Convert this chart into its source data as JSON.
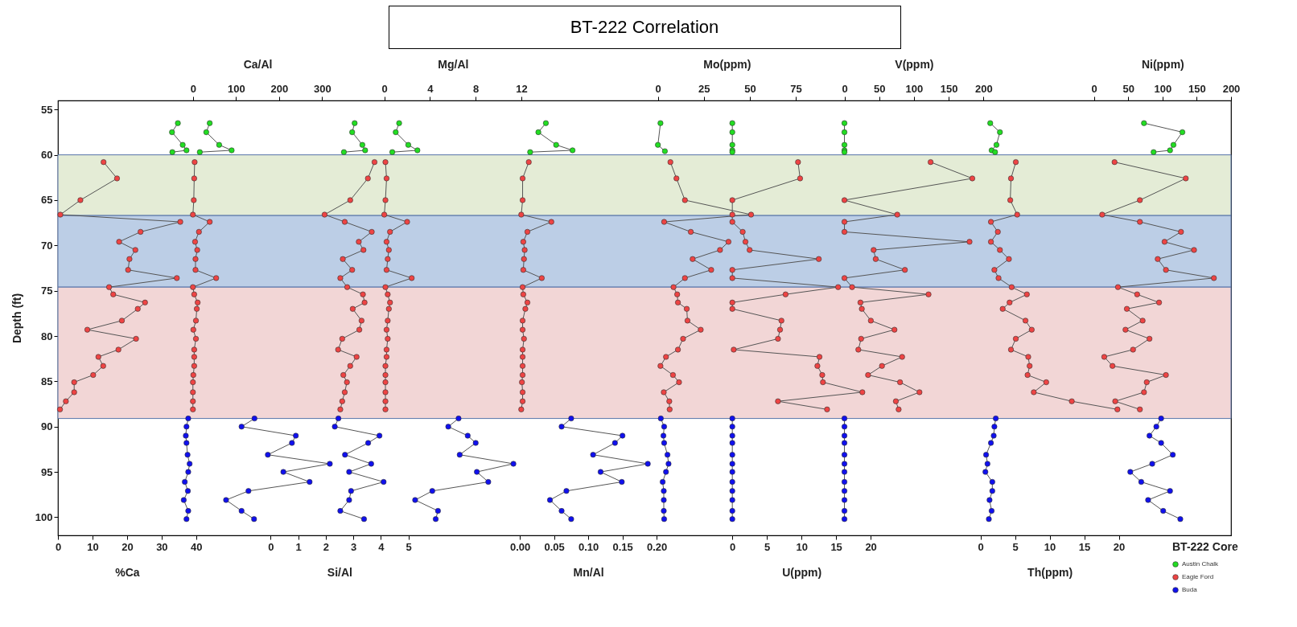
{
  "chart_data": [
    {
      "type": "line",
      "title": "BT-222 Correlation",
      "ylabel": "Depth (ft)",
      "marker": "circle",
      "xlabel": "%Ca",
      "xlim": [
        0,
        339.4
      ],
      "xticks": [
        0,
        10,
        20,
        30,
        40
      ],
      "x2label": "Ca/Al",
      "x2lim": [
        -313.5,
        2411
      ],
      "x2ticks": [
        0,
        100,
        200,
        300
      ],
      "ylim": [
        102,
        54
      ],
      "yticks": [
        55,
        60,
        65,
        70,
        75,
        80,
        85,
        90,
        95,
        100
      ],
      "bands": [
        {
          "axis": "y",
          "from": 60,
          "to": 66.7,
          "color": "#e4ecd6"
        },
        {
          "axis": "y",
          "from": 66.7,
          "to": 74.6,
          "color": "#bccee6"
        },
        {
          "axis": "y",
          "from": 74.6,
          "to": 89.1,
          "color": "#f2d6d6"
        }
      ],
      "series": [
        {
          "color": "#22dd22",
          "x": [
            34.7,
            33.0,
            36.1,
            37.2,
            33.1
          ],
          "values": [
            56.5,
            57.5,
            58.9,
            59.5,
            59.7
          ]
        },
        {
          "color": "#ee4444",
          "x": [
            13.2,
            17.1,
            6.5,
            0.7,
            35.4,
            23.9,
            17.7,
            22.4,
            20.7,
            20.3,
            34.4,
            14.8,
            16.0,
            25.2,
            23.1,
            18.5,
            8.5,
            22.6,
            17.5,
            11.7,
            13.1,
            10.2,
            4.7,
            4.7,
            2.3,
            0.6
          ],
          "values": [
            60.8,
            62.6,
            65.0,
            66.6,
            67.4,
            68.5,
            69.6,
            70.5,
            71.5,
            72.7,
            73.6,
            74.6,
            75.4,
            76.3,
            77.0,
            78.3,
            79.3,
            80.3,
            81.5,
            82.3,
            83.3,
            84.3,
            85.1,
            86.2,
            87.2,
            88.1
          ]
        },
        {
          "color": "#1010ee",
          "x": [
            37.7,
            37.2,
            37.0,
            37.2,
            37.5,
            38.1,
            37.7,
            36.7,
            37.6,
            36.4,
            37.7,
            37.2
          ],
          "values": [
            89.1,
            90.0,
            91.0,
            91.8,
            93.1,
            94.1,
            95.0,
            96.1,
            97.1,
            98.1,
            99.3,
            100.2
          ]
        },
        {
          "color": "#22dd22",
          "axis": "x2",
          "x": [
            39,
            31,
            61,
            90,
            16
          ],
          "values": [
            56.5,
            57.5,
            58.9,
            59.5,
            59.7
          ]
        },
        {
          "color": "#ee4444",
          "axis": "x2",
          "x": [
            4,
            3,
            2,
            0,
            39,
            14,
            5,
            10,
            6,
            6,
            54,
            0,
            3,
            11,
            9,
            7,
            1,
            7,
            3,
            3,
            3,
            1,
            0,
            0,
            0,
            0
          ],
          "values": [
            60.8,
            62.6,
            65.0,
            66.6,
            67.4,
            68.5,
            69.6,
            70.5,
            71.5,
            72.7,
            73.6,
            74.6,
            75.4,
            76.3,
            77.0,
            78.3,
            79.3,
            80.3,
            81.5,
            82.3,
            83.3,
            84.3,
            85.1,
            86.2,
            87.2,
            88.1
          ]
        },
        {
          "color": "#1010ee",
          "axis": "x2",
          "x": [
            143,
            113,
            239,
            230,
            174,
            318,
            210,
            271,
            129,
            77,
            113,
            142
          ],
          "values": [
            89.1,
            90.0,
            91.0,
            91.8,
            93.1,
            94.1,
            95.0,
            96.1,
            97.1,
            98.1,
            99.3,
            100.2
          ]
        }
      ]
    },
    {
      "type": "line",
      "marker": "circle",
      "xlabel": "Si/Al",
      "xlim": [
        -7.71,
        34.83
      ],
      "xticks": [
        0,
        1,
        2,
        3,
        4,
        5
      ],
      "x2label": "Mg/Al",
      "x2lim": [
        -28.56,
        74.1
      ],
      "x2ticks": [
        0,
        4,
        8,
        12
      ],
      "ylim": [
        102,
        54
      ],
      "tick_labels": "x",
      "series": [
        {
          "color": "#22dd22",
          "x": [
            3.05,
            2.96,
            3.33,
            3.43,
            2.66
          ],
          "values": [
            56.5,
            57.5,
            58.9,
            59.5,
            59.7
          ]
        },
        {
          "color": "#ee4444",
          "x": [
            3.77,
            3.53,
            2.89,
            1.96,
            2.69,
            3.67,
            3.2,
            3.37,
            2.62,
            2.96,
            2.53,
            2.78,
            3.35,
            3.41,
            2.98,
            3.3,
            3.22,
            2.6,
            2.45,
            3.12,
            2.89,
            2.64,
            2.77,
            2.69,
            2.6,
            2.53
          ],
          "values": [
            60.8,
            62.6,
            65.0,
            66.6,
            67.4,
            68.5,
            69.6,
            70.5,
            71.5,
            72.7,
            73.6,
            74.6,
            75.4,
            76.3,
            77.0,
            78.3,
            79.3,
            80.3,
            81.5,
            82.3,
            83.3,
            84.3,
            85.1,
            86.2,
            87.2,
            88.1
          ]
        },
        {
          "color": "#1010ee",
          "x": [
            2.46,
            2.33,
            3.95,
            3.54,
            2.7,
            3.65,
            2.85,
            4.1,
            2.92,
            2.85,
            2.53,
            3.39
          ],
          "values": [
            89.1,
            90.0,
            91.0,
            91.8,
            93.1,
            94.1,
            95.0,
            96.1,
            97.1,
            98.1,
            99.3,
            100.2
          ]
        },
        {
          "color": "#22dd22",
          "axis": "x2",
          "x": [
            1.3,
            1.0,
            2.1,
            2.9,
            0.7
          ],
          "values": [
            56.5,
            57.5,
            58.9,
            59.5,
            59.7
          ]
        },
        {
          "color": "#ee4444",
          "axis": "x2",
          "x": [
            0.1,
            0.2,
            0.1,
            0,
            2.0,
            0.5,
            0.2,
            0.4,
            0.3,
            0.2,
            2.4,
            0.1,
            0.3,
            0.5,
            0.4,
            0.3,
            0.2,
            0.3,
            0.2,
            0.2,
            0.1,
            0.1,
            0.1,
            0.1,
            0.1,
            0.1
          ],
          "values": [
            60.8,
            62.6,
            65.0,
            66.6,
            67.4,
            68.5,
            69.6,
            70.5,
            71.5,
            72.7,
            73.6,
            74.6,
            75.4,
            76.3,
            77.0,
            78.3,
            79.3,
            80.3,
            81.5,
            82.3,
            83.3,
            84.3,
            85.1,
            86.2,
            87.2,
            88.1
          ]
        },
        {
          "color": "#1010ee",
          "axis": "x2",
          "x": [
            6.5,
            5.6,
            7.3,
            8.0,
            6.6,
            11.3,
            8.1,
            9.1,
            4.2,
            2.7,
            4.7,
            4.5
          ],
          "values": [
            89.1,
            90.0,
            91.0,
            91.8,
            93.1,
            94.1,
            95.0,
            96.1,
            97.1,
            98.1,
            99.3,
            100.2
          ]
        }
      ]
    },
    {
      "type": "line",
      "marker": "circle",
      "xlabel": "Mn/Al",
      "xlim": [
        -0.6753,
        1.0396
      ],
      "xticks": [
        {
          "value": 0,
          "label": "0.00"
        },
        {
          "value": 0.05,
          "label": "0.05"
        },
        {
          "value": 0.1,
          "label": "0.10"
        },
        {
          "value": 0.15,
          "label": "0.15"
        },
        {
          "value": 0.2,
          "label": "0.20"
        }
      ],
      "x2label": "Mo(ppm)",
      "x2lim": [
        -326.4,
        311.8
      ],
      "x2ticks": [
        0,
        25,
        50,
        75
      ],
      "ylim": [
        102,
        54
      ],
      "tick_labels": "x",
      "series": [
        {
          "color": "#22dd22",
          "x": [
            0.038,
            0.027,
            0.053,
            0.077,
            0.015
          ],
          "values": [
            56.5,
            57.5,
            58.9,
            59.5,
            59.7
          ]
        },
        {
          "color": "#ee4444",
          "x": [
            0.013,
            0.004,
            0.004,
            0.002,
            0.046,
            0.011,
            0.005,
            0.007,
            0.006,
            0.005,
            0.032,
            0.004,
            0.005,
            0.011,
            0.008,
            0.004,
            0.004,
            0.006,
            0.004,
            0.004,
            0.004,
            0.004,
            0.003,
            0.004,
            0.004,
            0.002
          ],
          "values": [
            60.8,
            62.6,
            65.0,
            66.6,
            67.4,
            68.5,
            69.6,
            70.5,
            71.5,
            72.7,
            73.6,
            74.6,
            75.4,
            76.3,
            77.0,
            78.3,
            79.3,
            80.3,
            81.5,
            82.3,
            83.3,
            84.3,
            85.1,
            86.2,
            87.2,
            88.1
          ]
        },
        {
          "color": "#1010ee",
          "x": [
            0.075,
            0.061,
            0.15,
            0.139,
            0.107,
            0.187,
            0.118,
            0.149,
            0.068,
            0.044,
            0.061,
            0.075
          ],
          "values": [
            89.1,
            90.0,
            91.0,
            91.8,
            93.1,
            94.1,
            95.0,
            96.1,
            97.1,
            98.1,
            99.3,
            100.2
          ]
        },
        {
          "color": "#22dd22",
          "axis": "x2",
          "x": [
            1.4,
            0,
            3.8
          ],
          "values": [
            56.5,
            58.9,
            59.6
          ]
        },
        {
          "color": "#ee4444",
          "axis": "x2",
          "x": [
            6.8,
            10.1,
            14.7,
            50.7,
            3.4,
            17.9,
            38.4,
            33.8,
            18.9,
            29.0,
            14.7,
            8.5,
            10.5,
            10.9,
            15.7,
            16.1,
            23.3,
            13.7,
            10.9,
            4.4,
            1.4,
            8.2,
            11.5,
            3.2,
            6.2,
            6.4
          ],
          "values": [
            60.8,
            62.6,
            65.0,
            66.6,
            67.4,
            68.5,
            69.6,
            70.5,
            71.5,
            72.7,
            73.6,
            74.6,
            75.4,
            76.3,
            77.0,
            78.3,
            79.3,
            80.3,
            81.5,
            82.3,
            83.3,
            84.3,
            85.1,
            86.2,
            87.2,
            88.1
          ]
        },
        {
          "color": "#1010ee",
          "axis": "x2",
          "x": [
            1.6,
            3.4,
            3.0,
            3.4,
            5.2,
            5.8,
            4.4,
            2.6,
            3.2,
            3.2,
            3.2,
            3.4
          ],
          "values": [
            89.1,
            90.0,
            91.0,
            91.8,
            93.1,
            94.1,
            95.0,
            96.1,
            97.1,
            98.1,
            99.3,
            100.2
          ]
        }
      ]
    },
    {
      "type": "line",
      "marker": "circle",
      "xlabel": "U(ppm)",
      "xlim": [
        -97.5,
        72.1
      ],
      "xticks": [
        0,
        5,
        10,
        15,
        20
      ],
      "x2label": "V(ppm)",
      "x2lim": [
        -1131.8,
        556.3
      ],
      "x2ticks": [
        0,
        50,
        100,
        150,
        200
      ],
      "ylim": [
        102,
        54
      ],
      "tick_labels": "x",
      "series": [
        {
          "color": "#22dd22",
          "x": [
            0,
            0,
            0,
            0,
            0
          ],
          "values": [
            56.5,
            57.5,
            58.9,
            59.5,
            59.7
          ]
        },
        {
          "color": "#ee4444",
          "x": [
            9.5,
            9.8,
            0,
            0,
            0,
            1.5,
            1.9,
            2.5,
            12.5,
            0,
            0,
            15.3,
            7.7,
            0,
            0,
            7.1,
            6.9,
            6.6,
            0.2,
            12.6,
            12.3,
            13.0,
            13.1,
            18.8,
            6.6,
            13.7
          ],
          "values": [
            60.8,
            62.6,
            65.0,
            66.6,
            67.4,
            68.5,
            69.6,
            70.5,
            71.5,
            72.7,
            73.6,
            74.6,
            75.4,
            76.3,
            77.0,
            78.3,
            79.3,
            80.3,
            81.5,
            82.3,
            83.3,
            84.3,
            85.1,
            86.2,
            87.2,
            88.1
          ]
        },
        {
          "color": "#1010ee",
          "x": [
            0,
            0,
            0,
            0,
            0,
            0,
            0,
            0,
            0,
            0,
            0,
            0
          ],
          "values": [
            89.1,
            90.0,
            91.0,
            91.8,
            93.1,
            94.1,
            95.0,
            96.1,
            97.1,
            98.1,
            99.3,
            100.2
          ]
        },
        {
          "color": "#22dd22",
          "axis": "x2",
          "x": [
            0,
            0,
            0,
            0,
            0
          ],
          "values": [
            56.5,
            57.5,
            58.9,
            59.5,
            59.7
          ]
        },
        {
          "color": "#ee4444",
          "axis": "x2",
          "x": [
            124,
            184,
            0,
            76,
            0,
            0,
            180,
            42,
            45,
            87,
            0,
            11,
            121,
            23,
            25,
            38,
            72,
            24,
            20,
            83,
            54,
            34,
            80,
            108,
            74,
            78
          ],
          "values": [
            60.8,
            62.6,
            65.0,
            66.6,
            67.4,
            68.5,
            69.6,
            70.5,
            71.5,
            72.7,
            73.6,
            74.6,
            75.4,
            76.3,
            77.0,
            78.3,
            79.3,
            80.3,
            81.5,
            82.3,
            83.3,
            84.3,
            85.1,
            86.2,
            87.2,
            88.1
          ]
        },
        {
          "color": "#1010ee",
          "axis": "x2",
          "x": [
            0,
            0,
            0,
            0,
            0,
            0,
            0,
            0,
            0,
            0,
            0,
            0
          ],
          "values": [
            89.1,
            90.0,
            91.0,
            91.8,
            93.1,
            94.1,
            95.0,
            96.1,
            97.1,
            98.1,
            99.3,
            100.2
          ]
        }
      ]
    },
    {
      "type": "line",
      "marker": "circle",
      "legend": "bottom right",
      "legend_title": "BT-222 Core",
      "xlabel": "Th(ppm)",
      "xlim": [
        -133.5,
        36.24
      ],
      "xticks": [
        0,
        5,
        10,
        15,
        20
      ],
      "x2label": "Ni(ppm)",
      "x2lim": [
        -1511.9,
        200
      ],
      "x2ticks": [
        0,
        50,
        100,
        150,
        200
      ],
      "ylim": [
        102,
        54
      ],
      "tick_labels": "x",
      "series": [
        {
          "color": "#22dd22",
          "x": [
            1.4,
            2.8,
            2.3,
            1.6,
            2.1
          ],
          "values": [
            56.5,
            57.5,
            58.9,
            59.5,
            59.7
          ]
        },
        {
          "color": "#ee4444",
          "x": [
            5.1,
            4.4,
            4.3,
            5.3,
            1.5,
            2.5,
            1.5,
            2.8,
            4.1,
            2.0,
            2.6,
            4.5,
            6.7,
            4.2,
            3.2,
            6.5,
            7.4,
            5.1,
            4.4,
            6.9,
            7.1,
            6.8,
            9.5,
            7.7,
            13.2,
            19.8
          ],
          "values": [
            60.8,
            62.6,
            65.0,
            66.6,
            67.4,
            68.5,
            69.6,
            70.5,
            71.5,
            72.7,
            73.6,
            74.6,
            75.4,
            76.3,
            77.0,
            78.3,
            79.3,
            80.3,
            81.5,
            82.3,
            83.3,
            84.3,
            85.1,
            86.2,
            87.2,
            88.1
          ]
        },
        {
          "color": "#1010ee",
          "x": [
            2.2,
            2.0,
            1.9,
            1.5,
            0.8,
            1.0,
            0.7,
            1.7,
            1.7,
            1.3,
            1.6,
            1.2
          ],
          "values": [
            89.1,
            90.0,
            91.0,
            91.8,
            93.1,
            94.1,
            95.0,
            96.1,
            97.1,
            98.1,
            99.3,
            100.2
          ]
        },
        {
          "name": "Austin Chalk",
          "color": "#22dd22",
          "axis": "x2",
          "x": [
            73,
            129,
            116,
            111,
            87
          ],
          "values": [
            56.5,
            57.5,
            58.9,
            59.5,
            59.7
          ]
        },
        {
          "name": "Eagle Ford",
          "color": "#ee4444",
          "axis": "x2",
          "x": [
            30,
            134,
            67,
            12,
            67,
            127,
            103,
            146,
            93,
            105,
            175,
            35,
            63,
            95,
            48,
            71,
            46,
            81,
            57,
            15,
            27,
            105,
            77,
            73,
            31,
            67
          ],
          "values": [
            60.8,
            62.6,
            65.0,
            66.6,
            67.4,
            68.5,
            69.6,
            70.5,
            71.5,
            72.7,
            73.6,
            74.6,
            75.4,
            76.3,
            77.0,
            78.3,
            79.3,
            80.3,
            81.5,
            82.3,
            83.3,
            84.3,
            85.1,
            86.2,
            87.2,
            88.1
          ]
        },
        {
          "name": "Buda",
          "color": "#1010ee",
          "axis": "x2",
          "x": [
            98,
            91,
            81,
            98,
            115,
            85,
            53,
            69,
            111,
            79,
            101,
            126
          ],
          "values": [
            89.1,
            90.0,
            91.0,
            91.8,
            93.1,
            94.1,
            95.0,
            96.1,
            97.1,
            98.1,
            99.3,
            100.2
          ]
        }
      ]
    }
  ]
}
